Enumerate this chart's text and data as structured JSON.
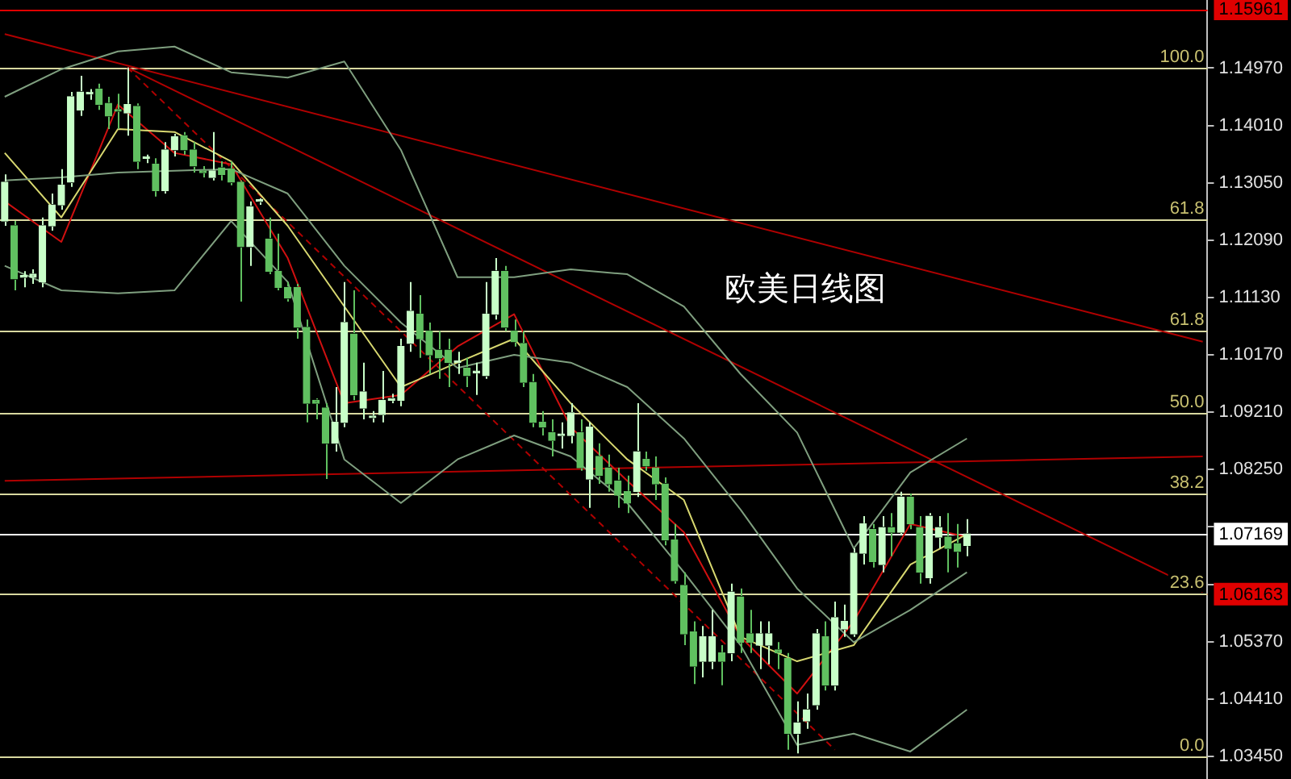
{
  "chart_data": {
    "type": "candlestick",
    "annotations": [
      "欧美日线图",
      {
        "text": "100.0",
        "y": 1.1497
      },
      {
        "text": "61.8",
        "y": 1.1243
      },
      {
        "text": "61.8",
        "y": 1.1057
      },
      {
        "text": "50.0",
        "y": 1.0921
      },
      {
        "text": "38.2",
        "y": 1.0785
      },
      {
        "text": "23.6",
        "y": 1.0617
      },
      {
        "text": "0.0",
        "y": 1.0345
      }
    ],
    "tick_labels": "y",
    "colors": [
      "#c8ffc8",
      "#60c060",
      "#c8ffc8",
      "#c8ffc8",
      "#c8ffc8",
      "#c8ffc8",
      "#c8ffc8",
      "#c8ffc8",
      "#c8ffc8",
      "#c8ffc8",
      "#60c060",
      "#60c060",
      "#60c060",
      "#c8ffc8",
      "#60c060",
      "#c8ffc8",
      "#60c060",
      "#c8ffc8",
      "#c8ffc8",
      "#60c060",
      "#60c060",
      "#60c060",
      "#c8ffc8",
      "#60c060",
      "#60c060",
      "#60c060",
      "#c8ffc8",
      "#c8ffc8",
      "#60c060",
      "#60c060",
      "#60c060",
      "#60c060",
      "#60c060",
      "#60c060",
      "#60c060",
      "#c8ffc8",
      "#c8ffc8",
      "#60c060",
      "#c8ffc8",
      "#c8ffc8",
      "#c8ffc8",
      "#c8ffc8",
      "#c8ffc8",
      "#c8ffc8",
      "#60c060",
      "#60c060",
      "#60c060",
      "#60c060",
      "#c8ffc8",
      "#60c060",
      "#c8ffc8",
      "#c8ffc8",
      "#c8ffc8",
      "#60c060",
      "#60c060",
      "#60c060",
      "#60c060",
      "#60c060",
      "#60c060",
      "#c8ffc8",
      "#c8ffc8",
      "#60c060",
      "#c8ffc8",
      "#60c060",
      "#60c060",
      "#60c060",
      "#60c060",
      "#c8ffc8",
      "#60c060",
      "#60c060",
      "#60c060",
      "#60c060",
      "#60c060",
      "#60c060",
      "#c8ffc8",
      "#c8ffc8",
      "#60c060",
      "#c8ffc8",
      "#60c060",
      "#60c060",
      "#c8ffc8",
      "#c8ffc8",
      "#60c060",
      "#60c060",
      "#c8ffc8",
      "#c8ffc8",
      "#c8ffc8",
      "#60c060",
      "#c8ffc8",
      "#c8ffc8",
      "#c8ffc8",
      "#c8ffc8",
      "#60c060",
      "#c8ffc8",
      "#60c060",
      "#c8ffc8",
      "#60c060",
      "#60c060",
      "#c8ffc8",
      "#c8ffc8",
      "#60c060",
      "#60c060",
      "#c8ffc8",
      null,
      null,
      null,
      null,
      null,
      null,
      null,
      null,
      null,
      null,
      null,
      null,
      null,
      null,
      null,
      null,
      null,
      null,
      null,
      null,
      null,
      null,
      null,
      null,
      null
    ],
    "ylim": [
      1.0307,
      1.1611
    ],
    "yticks": [
      {
        "value": 1.0345,
        "label": "1.03450"
      },
      {
        "value": 1.0441,
        "label": "1.04410"
      },
      {
        "value": 1.0537,
        "label": "1.05370"
      },
      {
        "value": 1.0633,
        "label": null
      },
      {
        "value": 1.0729,
        "label": null
      },
      {
        "value": 1.0825,
        "label": "1.08250"
      },
      {
        "value": 1.0921,
        "label": "1.09210"
      },
      {
        "value": 1.1017,
        "label": "1.10170"
      },
      {
        "value": 1.1113,
        "label": "1.11130"
      },
      {
        "value": 1.1209,
        "label": "1.12090"
      },
      {
        "value": 1.1305,
        "label": "1.13050"
      },
      {
        "value": 1.1401,
        "label": "1.14010"
      },
      {
        "value": 1.1497,
        "label": "1.14970"
      }
    ],
    "categories": [
      null,
      null,
      null,
      null,
      null,
      null,
      null,
      null,
      null,
      null,
      null,
      null,
      null,
      null,
      null,
      null,
      null,
      null,
      null,
      null,
      null,
      null,
      null,
      null,
      null,
      null,
      null,
      null,
      null,
      null,
      null,
      null,
      null,
      null,
      null,
      null,
      null,
      null,
      null,
      null,
      null,
      null,
      null,
      null,
      null,
      null,
      null,
      null,
      null,
      null,
      null,
      null,
      null,
      null,
      null,
      null,
      null,
      null,
      null,
      null,
      null,
      null,
      null,
      null,
      null,
      null,
      null,
      null,
      null,
      null,
      null,
      null,
      null,
      null,
      null,
      null,
      null,
      null,
      null,
      null,
      null,
      null,
      null,
      null,
      null,
      null,
      null,
      null,
      null,
      null,
      null,
      null,
      null,
      null,
      null,
      null,
      null,
      null,
      null,
      null,
      null,
      null,
      null,
      null,
      null,
      null,
      null,
      null,
      null,
      null,
      null,
      null,
      null,
      null,
      null,
      null,
      null,
      null,
      null,
      null,
      null,
      null,
      null,
      null,
      null,
      null,
      null,
      null
    ],
    "ohlc": [
      [
        1.1241,
        1.1319,
        1.1233,
        1.1306
      ],
      [
        1.1233,
        1.1241,
        1.1125,
        1.1144
      ],
      [
        1.1147,
        1.1157,
        1.113,
        1.1147
      ],
      [
        1.1147,
        1.116,
        1.1136,
        1.1152
      ],
      [
        1.1139,
        1.1247,
        1.113,
        1.1233
      ],
      [
        1.1233,
        1.1287,
        1.1225,
        1.1268
      ],
      [
        1.1268,
        1.1328,
        1.126,
        1.1301
      ],
      [
        1.1306,
        1.1457,
        1.1298,
        1.1449
      ],
      [
        1.1427,
        1.1484,
        1.1417,
        1.1457
      ],
      [
        1.1454,
        1.1462,
        1.1444,
        1.1454
      ],
      [
        1.1462,
        1.1471,
        1.1427,
        1.1436
      ],
      [
        1.1438,
        1.1449,
        1.1395,
        1.1417
      ],
      [
        1.1427,
        1.1454,
        1.1395,
        1.1425
      ],
      [
        1.1422,
        1.1498,
        1.1384,
        1.1436
      ],
      [
        1.1433,
        1.1438,
        1.1328,
        1.1341
      ],
      [
        1.1346,
        1.1352,
        1.1338,
        1.1346
      ],
      [
        1.1336,
        1.1346,
        1.1282,
        1.1292
      ],
      [
        1.1292,
        1.1373,
        1.1287,
        1.136
      ],
      [
        1.136,
        1.1387,
        1.1349,
        1.1382
      ],
      [
        1.1384,
        1.139,
        1.1352,
        1.136
      ],
      [
        1.136,
        1.1373,
        1.1322,
        1.1333
      ],
      [
        1.1325,
        1.1333,
        1.1314,
        1.1322
      ],
      [
        1.1314,
        1.139,
        1.1309,
        1.1325
      ],
      [
        1.133,
        1.1341,
        1.1309,
        1.1319
      ],
      [
        1.1328,
        1.1341,
        1.1301,
        1.1306
      ],
      [
        1.1306,
        1.1309,
        1.1106,
        1.1198
      ],
      [
        1.1198,
        1.1274,
        1.1166,
        1.1265
      ],
      [
        1.1274,
        1.1279,
        1.1268,
        1.1274
      ],
      [
        1.1211,
        1.1247,
        1.1152,
        1.1157
      ],
      [
        1.1157,
        1.122,
        1.1125,
        1.113
      ],
      [
        1.113,
        1.1139,
        1.1106,
        1.1112
      ],
      [
        1.113,
        1.1136,
        1.1044,
        1.1063
      ],
      [
        1.1063,
        1.1076,
        1.0904,
        1.0936
      ],
      [
        1.0941,
        1.0944,
        1.0909,
        1.0936
      ],
      [
        1.0928,
        1.0936,
        1.0809,
        1.0869
      ],
      [
        1.0869,
        1.0963,
        1.0855,
        1.0904
      ],
      [
        1.0904,
        1.1139,
        1.0896,
        1.1071
      ],
      [
        1.1052,
        1.1125,
        1.0941,
        1.095
      ],
      [
        1.0928,
        1.1004,
        1.0909,
        1.0955
      ],
      [
        1.0912,
        1.0923,
        1.0904,
        1.0914
      ],
      [
        1.0917,
        1.099,
        1.0904,
        1.0941
      ],
      [
        1.0941,
        1.0952,
        1.0936,
        1.0944
      ],
      [
        1.0941,
        1.1044,
        1.0931,
        1.1031
      ],
      [
        1.1036,
        1.1139,
        1.1022,
        1.109
      ],
      [
        1.1085,
        1.1117,
        1.1012,
        1.1044
      ],
      [
        1.1057,
        1.1071,
        1.0985,
        1.1017
      ],
      [
        1.1025,
        1.1057,
        1.0977,
        1.1012
      ],
      [
        1.1025,
        1.1044,
        1.0963,
        1.1004
      ],
      [
        1.1004,
        1.1022,
        1.0985,
        1.1004
      ],
      [
        1.0995,
        1.1012,
        1.0963,
        1.0982
      ],
      [
        1.0987,
        1.1004,
        1.095,
        1.0987
      ],
      [
        1.0982,
        1.1139,
        1.0977,
        1.1085
      ],
      [
        1.1085,
        1.1179,
        1.1076,
        1.1157
      ],
      [
        1.1157,
        1.1166,
        1.1057,
        1.1063
      ],
      [
        1.1057,
        1.1076,
        1.1031,
        1.1039
      ],
      [
        1.1036,
        1.1057,
        1.0963,
        1.0971
      ],
      [
        1.0971,
        1.0985,
        1.0896,
        1.0904
      ],
      [
        1.0904,
        1.0923,
        1.0882,
        1.0896
      ],
      [
        1.0887,
        1.0909,
        1.0847,
        1.0874
      ],
      [
        1.0882,
        1.0904,
        1.086,
        1.0882
      ],
      [
        1.0882,
        1.0936,
        1.0869,
        1.092
      ],
      [
        1.0887,
        1.0909,
        1.0823,
        1.0828
      ],
      [
        1.0809,
        1.0904,
        1.0761,
        1.0896
      ],
      [
        1.0847,
        1.0869,
        1.0801,
        1.0815
      ],
      [
        1.0828,
        1.085,
        1.0788,
        1.0801
      ],
      [
        1.0806,
        1.0828,
        1.0761,
        1.0782
      ],
      [
        1.0788,
        1.0815,
        1.0752,
        1.0769
      ],
      [
        1.0788,
        1.0936,
        1.0779,
        1.0855
      ],
      [
        1.0842,
        1.0855,
        1.0823,
        1.0831
      ],
      [
        1.0828,
        1.0847,
        1.0774,
        1.0801
      ],
      [
        1.0801,
        1.0812,
        1.0698,
        1.0707
      ],
      [
        1.0707,
        1.0734,
        1.0634,
        1.0639
      ],
      [
        1.0631,
        1.0653,
        1.0531,
        1.055
      ],
      [
        1.0553,
        1.0571,
        1.0466,
        1.0496
      ],
      [
        1.0504,
        1.0563,
        1.0477,
        1.0545
      ],
      [
        1.0504,
        1.059,
        1.0491,
        1.0545
      ],
      [
        1.0518,
        1.0531,
        1.0464,
        1.0504
      ],
      [
        1.0518,
        1.0634,
        1.0504,
        1.062
      ],
      [
        1.0612,
        1.0626,
        1.0518,
        1.0536
      ],
      [
        1.055,
        1.059,
        1.0518,
        1.0536
      ],
      [
        1.0531,
        1.0571,
        1.0491,
        1.055
      ],
      [
        1.0531,
        1.0571,
        1.0499,
        1.055
      ],
      [
        1.0523,
        1.0536,
        1.0491,
        1.0518
      ],
      [
        1.0509,
        1.0518,
        1.0356,
        1.0383
      ],
      [
        1.0383,
        1.0437,
        1.035,
        1.0401
      ],
      [
        1.0404,
        1.045,
        1.0391,
        1.0423
      ],
      [
        1.0431,
        1.0558,
        1.0423,
        1.055
      ],
      [
        1.0545,
        1.0571,
        1.0455,
        1.0464
      ],
      [
        1.0464,
        1.0604,
        1.0455,
        1.0577
      ],
      [
        1.0558,
        1.0599,
        1.0545,
        1.0571
      ],
      [
        1.055,
        1.0693,
        1.0545,
        1.0685
      ],
      [
        1.0685,
        1.0747,
        1.0666,
        1.0734
      ],
      [
        1.0725,
        1.0734,
        1.0661,
        1.0671
      ],
      [
        1.0666,
        1.0747,
        1.0653,
        1.0728
      ],
      [
        1.0728,
        1.0752,
        1.068,
        1.072
      ],
      [
        1.072,
        1.0788,
        1.0715,
        1.0779
      ],
      [
        1.0779,
        1.0785,
        1.0725,
        1.0734
      ],
      [
        1.0728,
        1.0747,
        1.0634,
        1.0653
      ],
      [
        1.0644,
        1.0752,
        1.0634,
        1.0747
      ],
      [
        1.0712,
        1.0747,
        1.0693,
        1.0728
      ],
      [
        1.0712,
        1.0752,
        1.0653,
        1.0693
      ],
      [
        1.0701,
        1.0734,
        1.0661,
        1.0688
      ],
      [
        1.0698,
        1.0742,
        1.068,
        1.0717
      ],
      null,
      null,
      null,
      null,
      null,
      null,
      null,
      null,
      null,
      null,
      null,
      null,
      null,
      null,
      null,
      null,
      null,
      null,
      null,
      null,
      null,
      null,
      null,
      null,
      null
    ],
    "series": [
      {
        "type": "line",
        "color": "#7f9f7f",
        "values": [
          1.1449,
          null,
          null,
          null,
          null,
          null,
          1.1495,
          null,
          null,
          null,
          null,
          null,
          1.1525,
          null,
          null,
          null,
          null,
          null,
          1.1533,
          null,
          null,
          null,
          null,
          null,
          1.149,
          null,
          null,
          null,
          null,
          null,
          1.1481,
          null,
          null,
          null,
          null,
          null,
          1.1508,
          null,
          null,
          null,
          null,
          null,
          1.136,
          null,
          null,
          null,
          null,
          null,
          1.1147,
          null,
          null,
          null,
          null,
          null,
          1.1147,
          null,
          null,
          null,
          null,
          null,
          1.116,
          null,
          null,
          null,
          null,
          null,
          1.1152,
          null,
          null,
          null,
          null,
          null,
          1.1098,
          null,
          null,
          null,
          null,
          null,
          1.0985,
          null,
          null,
          null,
          null,
          null,
          1.0887,
          null,
          null,
          null,
          null,
          null,
          1.0693,
          null,
          null,
          null,
          null,
          null,
          1.082,
          null,
          null,
          null,
          null,
          null,
          1.0877,
          null,
          null,
          null,
          null,
          null,
          null,
          null,
          null,
          null,
          null,
          null,
          null,
          null,
          null,
          null,
          null,
          null,
          null,
          null,
          null,
          null,
          null,
          null,
          null,
          null
        ]
      },
      {
        "type": "line",
        "color": "#7f9f7f",
        "values": [
          1.1309,
          null,
          null,
          null,
          null,
          null,
          1.1314,
          null,
          null,
          null,
          null,
          null,
          1.1322,
          null,
          null,
          null,
          null,
          null,
          1.1325,
          null,
          null,
          null,
          null,
          null,
          1.1328,
          null,
          null,
          null,
          null,
          null,
          1.1287,
          null,
          null,
          null,
          null,
          null,
          1.1166,
          null,
          null,
          null,
          null,
          null,
          1.1071,
          null,
          null,
          null,
          null,
          null,
          1.0995,
          null,
          null,
          null,
          null,
          null,
          1.1017,
          null,
          null,
          null,
          null,
          null,
          1.1004,
          null,
          null,
          null,
          null,
          null,
          1.0963,
          null,
          null,
          null,
          null,
          null,
          1.0877,
          null,
          null,
          null,
          null,
          null,
          1.0758,
          null,
          null,
          null,
          null,
          null,
          1.0626,
          null,
          null,
          null,
          null,
          null,
          1.0536,
          null,
          null,
          null,
          null,
          null,
          1.059,
          null,
          null,
          null,
          null,
          null,
          1.0653,
          null,
          null,
          null,
          null,
          null,
          null,
          null,
          null,
          null,
          null,
          null,
          null,
          null,
          null,
          null,
          null,
          null,
          null,
          null,
          null,
          null,
          null,
          null,
          null,
          null
        ]
      },
      {
        "type": "line",
        "color": "#7f9f7f",
        "values": [
          1.1166,
          null,
          null,
          null,
          null,
          null,
          1.1125,
          null,
          null,
          null,
          null,
          null,
          1.112,
          null,
          null,
          null,
          null,
          null,
          1.1125,
          null,
          null,
          null,
          null,
          null,
          1.1241,
          null,
          null,
          null,
          null,
          null,
          1.1139,
          null,
          null,
          null,
          null,
          null,
          1.0842,
          null,
          null,
          null,
          null,
          null,
          1.0769,
          null,
          null,
          null,
          null,
          null,
          1.0842,
          null,
          null,
          null,
          null,
          null,
          1.0882,
          null,
          null,
          null,
          null,
          null,
          1.0847,
          null,
          null,
          null,
          null,
          null,
          1.0769,
          null,
          null,
          null,
          null,
          null,
          1.0653,
          null,
          null,
          null,
          null,
          null,
          1.0531,
          null,
          null,
          null,
          null,
          null,
          1.0364,
          null,
          null,
          null,
          null,
          null,
          1.0383,
          null,
          null,
          null,
          null,
          null,
          1.0353,
          null,
          null,
          null,
          null,
          null,
          1.0423,
          null,
          null,
          null,
          null,
          null,
          null,
          null,
          null,
          null,
          null,
          null,
          null,
          null,
          null,
          null,
          null,
          null,
          null,
          null,
          null,
          null,
          null,
          null,
          null,
          null
        ]
      },
      {
        "type": "line",
        "color": "#d8d870",
        "values": [
          1.1355,
          null,
          null,
          null,
          null,
          null,
          1.1247,
          null,
          null,
          null,
          null,
          null,
          1.1395,
          null,
          null,
          null,
          null,
          null,
          1.139,
          null,
          null,
          null,
          null,
          null,
          1.1341,
          null,
          null,
          null,
          null,
          null,
          1.1233,
          null,
          null,
          null,
          null,
          null,
          1.1098,
          null,
          null,
          null,
          null,
          null,
          1.0963,
          null,
          null,
          null,
          null,
          null,
          1.1004,
          null,
          null,
          null,
          null,
          null,
          1.1044,
          null,
          null,
          null,
          null,
          null,
          1.0936,
          null,
          null,
          null,
          null,
          null,
          1.0842,
          null,
          null,
          null,
          null,
          null,
          1.0774,
          null,
          null,
          null,
          null,
          null,
          1.0545,
          null,
          null,
          null,
          null,
          null,
          1.0504,
          null,
          null,
          null,
          null,
          null,
          1.0531,
          null,
          null,
          null,
          null,
          null,
          1.0666,
          null,
          null,
          null,
          null,
          null,
          1.0717,
          null,
          null,
          null,
          null,
          null,
          null,
          null,
          null,
          null,
          null,
          null,
          null,
          null,
          null,
          null,
          null,
          null,
          null,
          null,
          null,
          null,
          null,
          null,
          null,
          null
        ]
      },
      {
        "type": "line",
        "color": "#d01010",
        "values": [
          1.1274,
          null,
          null,
          null,
          null,
          null,
          1.1206,
          null,
          null,
          null,
          null,
          null,
          1.1436,
          null,
          null,
          null,
          null,
          null,
          1.1355,
          null,
          null,
          null,
          null,
          null,
          1.1336,
          null,
          null,
          null,
          null,
          null,
          1.1179,
          null,
          null,
          null,
          null,
          null,
          1.0936,
          null,
          null,
          null,
          null,
          null,
          1.095,
          null,
          null,
          null,
          null,
          null,
          1.1031,
          null,
          null,
          null,
          null,
          null,
          1.1085,
          null,
          null,
          null,
          null,
          null,
          1.0896,
          null,
          null,
          null,
          null,
          null,
          1.0806,
          null,
          null,
          null,
          null,
          null,
          1.072,
          null,
          null,
          null,
          null,
          null,
          1.0545,
          null,
          null,
          null,
          null,
          null,
          1.045,
          null,
          null,
          null,
          null,
          null,
          1.0571,
          null,
          null,
          null,
          null,
          null,
          1.0734,
          null,
          null,
          null,
          null,
          null,
          1.0712,
          null,
          null,
          null,
          null,
          null,
          null,
          null,
          null,
          null,
          null,
          null,
          null,
          null,
          null,
          null,
          null,
          null,
          null,
          null,
          null,
          null,
          null,
          null,
          null,
          null
        ]
      },
      {
        "type": "line",
        "color": "#b00000",
        "values": [
          1.1554,
          null,
          null,
          null,
          null,
          null,
          null,
          null,
          null,
          null,
          null,
          null,
          null,
          null,
          null,
          null,
          null,
          null,
          null,
          null,
          null,
          null,
          null,
          null,
          null,
          null,
          null,
          null,
          null,
          null,
          null,
          null,
          null,
          null,
          null,
          null,
          null,
          null,
          null,
          null,
          null,
          null,
          null,
          null,
          null,
          null,
          null,
          null,
          null,
          null,
          null,
          null,
          null,
          null,
          null,
          null,
          null,
          null,
          null,
          null,
          null,
          null,
          null,
          null,
          null,
          null,
          null,
          null,
          null,
          null,
          null,
          null,
          null,
          null,
          null,
          null,
          null,
          null,
          null,
          null,
          null,
          null,
          null,
          null,
          null,
          null,
          null,
          null,
          null,
          null,
          null,
          null,
          null,
          null,
          null,
          null,
          null,
          null,
          null,
          null,
          null,
          null,
          null,
          null,
          null,
          null,
          null,
          null,
          null,
          null,
          null,
          null,
          null,
          null,
          null,
          null,
          null,
          null,
          null,
          null,
          null,
          null,
          null,
          null,
          null,
          null,
          null,
          1.1039
        ]
      },
      {
        "type": "line",
        "color": "#b00000",
        "values": [
          null,
          null,
          null,
          null,
          null,
          null,
          null,
          null,
          null,
          null,
          null,
          null,
          null,
          1.1498,
          null,
          null,
          null,
          null,
          null,
          null,
          null,
          null,
          null,
          null,
          null,
          null,
          null,
          null,
          null,
          null,
          null,
          null,
          null,
          null,
          null,
          null,
          null,
          null,
          null,
          null,
          null,
          null,
          null,
          null,
          null,
          null,
          null,
          null,
          null,
          null,
          null,
          null,
          null,
          null,
          null,
          null,
          null,
          null,
          null,
          null,
          null,
          null,
          null,
          null,
          null,
          null,
          null,
          null,
          null,
          null,
          null,
          null,
          null,
          null,
          null,
          null,
          null,
          null,
          null,
          null,
          null,
          null,
          null,
          null,
          null,
          null,
          null,
          null,
          null,
          null,
          null,
          null,
          null,
          null,
          null,
          null,
          null,
          null,
          null,
          null,
          null,
          null,
          null,
          null,
          null,
          null,
          null,
          null,
          null,
          null,
          null,
          null,
          null,
          null,
          null,
          null,
          null,
          null,
          null,
          null,
          null,
          null,
          null,
          null,
          null,
          null,
          null,
          1.062
        ]
      },
      {
        "type": "line",
        "color": "#b00000",
        "line_style": "dashed",
        "values": [
          null,
          null,
          null,
          null,
          null,
          null,
          null,
          null,
          null,
          null,
          null,
          null,
          null,
          1.1498,
          null,
          null,
          null,
          null,
          null,
          null,
          null,
          null,
          null,
          null,
          null,
          null,
          null,
          null,
          null,
          null,
          null,
          null,
          null,
          null,
          null,
          null,
          null,
          null,
          null,
          null,
          null,
          null,
          null,
          null,
          null,
          null,
          null,
          null,
          null,
          null,
          null,
          null,
          null,
          null,
          null,
          null,
          null,
          null,
          null,
          null,
          null,
          null,
          null,
          null,
          null,
          null,
          null,
          null,
          null,
          null,
          null,
          null,
          null,
          null,
          null,
          null,
          null,
          null,
          null,
          null,
          null,
          null,
          null,
          null,
          null,
          null,
          null,
          null,
          1.0356,
          null,
          null,
          null,
          null,
          null,
          null,
          null,
          null,
          null,
          null,
          null,
          null,
          null,
          null,
          null,
          null,
          null,
          null,
          null,
          null,
          null,
          null,
          null,
          null,
          null,
          null,
          null,
          null,
          null,
          null,
          null,
          null,
          null,
          null,
          null,
          null,
          null,
          null,
          null
        ]
      },
      {
        "type": "line",
        "color": "#b00000",
        "values": [
          1.0806,
          null,
          null,
          null,
          null,
          null,
          null,
          null,
          null,
          null,
          null,
          null,
          null,
          null,
          null,
          null,
          null,
          null,
          null,
          null,
          null,
          null,
          null,
          null,
          null,
          null,
          null,
          null,
          null,
          null,
          null,
          null,
          null,
          null,
          null,
          null,
          null,
          null,
          null,
          null,
          null,
          null,
          null,
          null,
          null,
          null,
          null,
          null,
          null,
          null,
          null,
          null,
          null,
          null,
          null,
          null,
          null,
          null,
          null,
          null,
          null,
          null,
          null,
          null,
          null,
          null,
          null,
          null,
          null,
          null,
          null,
          null,
          null,
          null,
          null,
          null,
          null,
          null,
          null,
          null,
          null,
          null,
          null,
          null,
          null,
          null,
          null,
          null,
          null,
          null,
          null,
          null,
          null,
          null,
          null,
          null,
          null,
          null,
          null,
          null,
          null,
          null,
          null,
          null,
          null,
          null,
          null,
          null,
          null,
          null,
          null,
          null,
          null,
          null,
          null,
          null,
          null,
          null,
          null,
          null,
          null,
          null,
          null,
          null,
          null,
          null,
          null,
          1.0847
        ]
      }
    ],
    "ref_lines": [
      {
        "axis": "y",
        "value": 1.15961,
        "label": "1.15961",
        "color": "#e00000"
      },
      {
        "axis": "y",
        "value": 1.06163,
        "label": "1.06163",
        "color": "#e00000"
      },
      {
        "axis": "y",
        "value": 1.07169,
        "label": "1.07169",
        "color": "#ffffff"
      },
      {
        "axis": "y",
        "value": 1.1497,
        "color": "#d8d8a0"
      },
      {
        "axis": "y",
        "value": 1.1243,
        "color": "#d8d8a0"
      },
      {
        "axis": "y",
        "value": 1.1057,
        "color": "#d8d8a0"
      },
      {
        "axis": "y",
        "value": 1.0921,
        "color": "#d8d8a0"
      },
      {
        "axis": "y",
        "value": 1.0785,
        "color": "#d8d8a0"
      },
      {
        "axis": "y",
        "value": 1.0617,
        "color": "#d8d8a0"
      },
      {
        "axis": "y",
        "value": 1.0345,
        "color": "#d8d8a0"
      }
    ]
  }
}
